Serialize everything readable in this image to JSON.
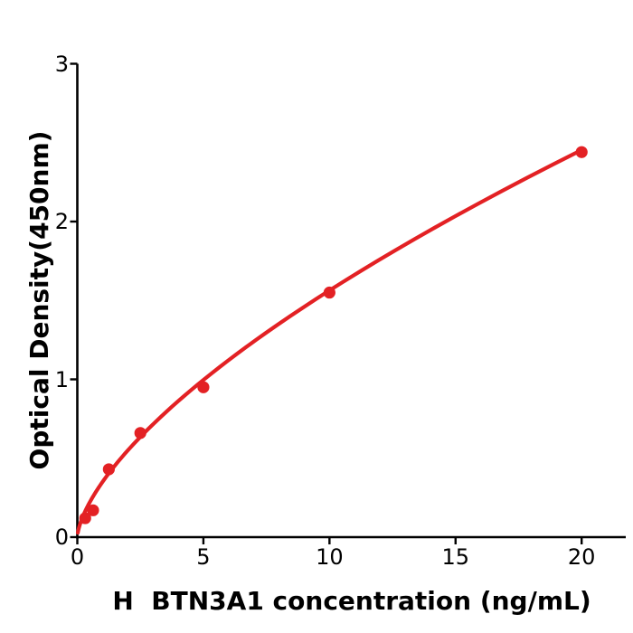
{
  "figure": {
    "background_color": "#ffffff",
    "kind": "ELISA binding curve"
  },
  "chart_data": {
    "type": "scatter",
    "title": "",
    "xlabel": "H  BTN3A1 concentration (ng/mL)",
    "ylabel": "Optical Density(450nm)",
    "x": [
      0.3125,
      0.625,
      1.25,
      2.5,
      5,
      10,
      20
    ],
    "y": [
      0.12,
      0.17,
      0.43,
      0.66,
      0.95,
      1.55,
      2.44
    ],
    "xlim": [
      0,
      21.75
    ],
    "ylim": [
      0,
      3
    ],
    "xticks": [
      0,
      5,
      10,
      15,
      20
    ],
    "yticks": [
      0,
      1,
      2,
      3
    ],
    "grid": false,
    "legend_position": "none",
    "point_color": "#e32124",
    "line_color": "#e32124",
    "axis_color": "#000000",
    "fit_curve": {
      "type": "power",
      "a": 0.35,
      "b": 0.65,
      "x_start": 0.02,
      "x_end": 20
    }
  }
}
